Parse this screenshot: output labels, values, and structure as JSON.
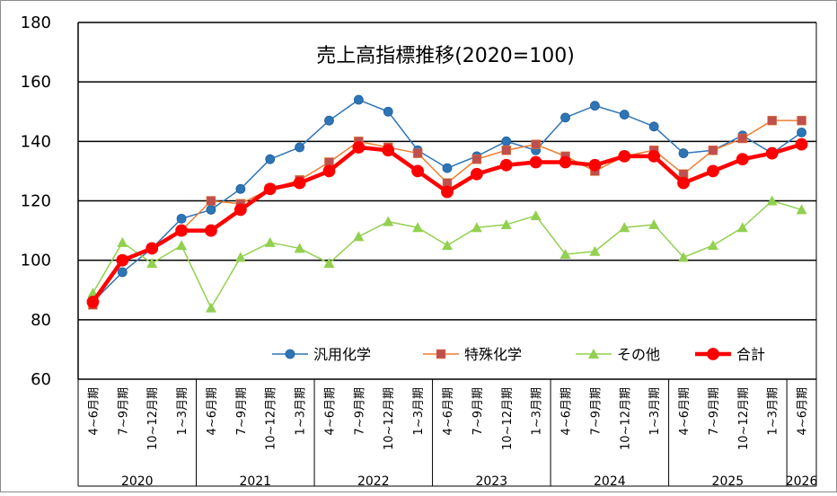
{
  "chart_data": {
    "type": "line",
    "title": "売上高指標推移(2020=100)",
    "xlabel": "",
    "ylabel": "",
    "ylim": [
      60,
      180
    ],
    "yticks": [
      60,
      80,
      100,
      120,
      140,
      160,
      180
    ],
    "grid": true,
    "legend_position": "bottom-inside",
    "categories": [
      "4~6月期",
      "7~9月期",
      "10~12月期",
      "1~3月期",
      "4~6月期",
      "7~9月期",
      "10~12月期",
      "1~3月期",
      "4~6月期",
      "7~9月期",
      "10~12月期",
      "1~3月期",
      "4~6月期",
      "7~9月期",
      "10~12月期",
      "1~3月期",
      "4~6月期",
      "7~9月期",
      "10~12月期",
      "1~3月期",
      "4~6月期",
      "7~9月期",
      "10~12月期",
      "1~3月期",
      "4~6月期"
    ],
    "year_groups": [
      {
        "label": "2020",
        "count": 4
      },
      {
        "label": "2021",
        "count": 4
      },
      {
        "label": "2022",
        "count": 4
      },
      {
        "label": "2023",
        "count": 4
      },
      {
        "label": "2024",
        "count": 4
      },
      {
        "label": "2025",
        "count": 4
      },
      {
        "label": "2026",
        "count": 1
      }
    ],
    "series": [
      {
        "name": "汎用化学",
        "color": "#2e75b6",
        "marker": "circle",
        "values": [
          86,
          96,
          104,
          114,
          117,
          124,
          134,
          138,
          147,
          154,
          150,
          137,
          131,
          135,
          140,
          137,
          148,
          152,
          149,
          145,
          136,
          137,
          142,
          136,
          143
        ]
      },
      {
        "name": "特殊化学",
        "color": "#ed7d31",
        "marker_fill": "#c0504d",
        "marker": "square",
        "values": [
          85,
          100,
          104,
          110,
          120,
          119,
          124,
          127,
          133,
          140,
          138,
          136,
          126,
          134,
          137,
          139,
          135,
          130,
          135,
          137,
          129,
          137,
          141,
          147,
          147
        ]
      },
      {
        "name": "その他",
        "color": "#92d050",
        "marker": "triangle",
        "values": [
          89,
          106,
          99,
          105,
          84,
          101,
          106,
          104,
          99,
          108,
          113,
          111,
          105,
          111,
          112,
          115,
          102,
          103,
          111,
          112,
          101,
          105,
          111,
          120,
          117
        ]
      },
      {
        "name": "合計",
        "color": "#ff0000",
        "marker": "circle",
        "values": [
          86,
          100,
          104,
          110,
          110,
          117,
          124,
          126,
          130,
          138,
          137,
          130,
          123,
          129,
          132,
          133,
          133,
          132,
          135,
          135,
          126,
          130,
          134,
          136,
          139
        ]
      }
    ]
  }
}
